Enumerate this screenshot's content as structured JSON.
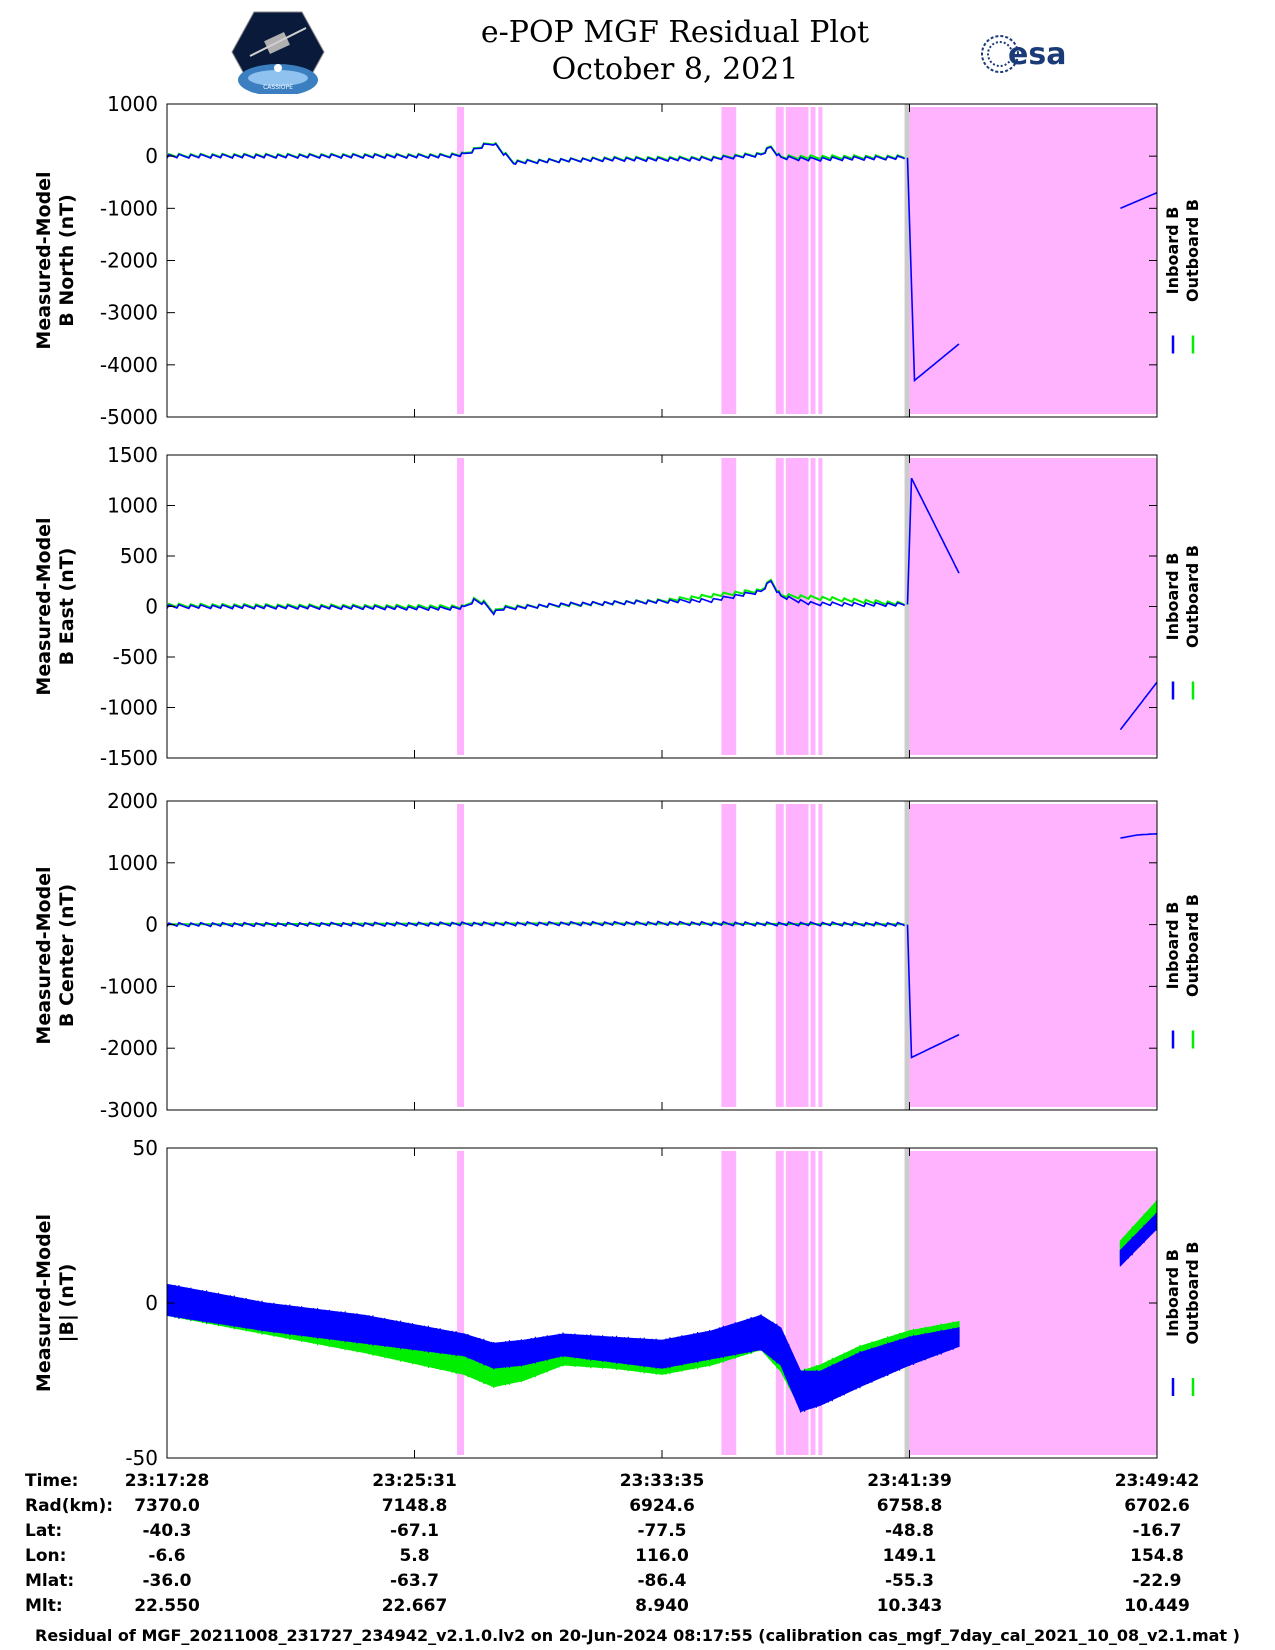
{
  "title": {
    "line1": "e-POP MGF Residual Plot",
    "line2": "October 8, 2021"
  },
  "logos": {
    "left": "cassiope-logo",
    "left_text": "CASSIOPE",
    "right": "esa-logo",
    "right_text": "esa"
  },
  "colors": {
    "inboard": "#0000ff",
    "outboard": "#00ee00",
    "shade": "#ffb3ff",
    "gap": "#cccccc"
  },
  "legend": {
    "inboard": "Inboard B",
    "outboard": "Outboard B"
  },
  "ephemeris": {
    "row_labels": [
      "Time:",
      "Rad(km):",
      "Lat:",
      "Lon:",
      "Mlat:",
      "Mlt:"
    ],
    "columns": [
      {
        "Time": "23:17:28",
        "Rad": "7370.0",
        "Lat": "-40.3",
        "Lon": "-6.6",
        "Mlat": "-36.0",
        "Mlt": "22.550"
      },
      {
        "Time": "23:25:31",
        "Rad": "7148.8",
        "Lat": "-67.1",
        "Lon": "5.8",
        "Mlat": "-63.7",
        "Mlt": "22.667"
      },
      {
        "Time": "23:33:35",
        "Rad": "6924.6",
        "Lat": "-77.5",
        "Lon": "116.0",
        "Mlat": "-86.4",
        "Mlt": "8.940"
      },
      {
        "Time": "23:41:39",
        "Rad": "6758.8",
        "Lat": "-48.8",
        "Lon": "149.1",
        "Mlat": "-55.3",
        "Mlt": "10.343"
      },
      {
        "Time": "23:49:42",
        "Rad": "6702.6",
        "Lat": "-16.7",
        "Lon": "154.8",
        "Mlat": "-22.9",
        "Mlt": "10.449"
      }
    ]
  },
  "footer": "Residual of MGF_20211008_231727_234942_v2.1.0.lv2 on 20-Jun-2024 08:17:55 (calibration cas_mgf_7day_cal_2021_10_08_v2.1.mat )",
  "chart_data": [
    {
      "type": "line",
      "ylabel": [
        "Measured-Model",
        "B North (nT)"
      ],
      "ylim": [
        -5000,
        1000
      ],
      "yticks": [
        1000,
        0,
        -1000,
        -2000,
        -3000,
        -4000,
        -5000
      ],
      "xlim": [
        0,
        1
      ],
      "xticks": [
        0,
        0.25,
        0.5,
        0.75,
        1
      ],
      "shaded_regions": [
        [
          0.293,
          0.3
        ],
        [
          0.56,
          0.575
        ],
        [
          0.615,
          0.623
        ],
        [
          0.625,
          0.648
        ],
        [
          0.65,
          0.655
        ],
        [
          0.658,
          0.662
        ],
        [
          0.75,
          1.0
        ]
      ],
      "gap_regions": [
        [
          0.745,
          0.75
        ]
      ],
      "series": [
        {
          "name": "Inboard B",
          "x": [
            0,
            0.1,
            0.2,
            0.28,
            0.3,
            0.32,
            0.33,
            0.34,
            0.35,
            0.4,
            0.45,
            0.5,
            0.55,
            0.6,
            0.61,
            0.62,
            0.65,
            0.7,
            0.745
          ],
          "values": [
            0,
            0,
            0,
            0,
            30,
            200,
            250,
            50,
            -120,
            -80,
            -60,
            -60,
            -50,
            30,
            170,
            -30,
            -60,
            -40,
            -30
          ]
        },
        {
          "name": "Inboard B",
          "x": [
            0.748,
            0.755,
            0.8
          ],
          "values": [
            -30,
            -4300,
            -3600
          ]
        },
        {
          "name": "Inboard B",
          "x": [
            0.963,
            1.0
          ],
          "values": [
            -1000,
            -700
          ]
        },
        {
          "name": "Outboard B",
          "x": [
            0,
            0.28,
            0.3,
            0.32,
            0.33,
            0.34,
            0.35,
            0.45,
            0.55,
            0.6,
            0.61,
            0.62,
            0.745
          ],
          "values": [
            10,
            10,
            40,
            210,
            260,
            60,
            -110,
            -50,
            -40,
            40,
            180,
            -20,
            -20
          ]
        }
      ]
    },
    {
      "type": "line",
      "ylabel": [
        "Measured-Model",
        "B East (nT)"
      ],
      "ylim": [
        -1500,
        1500
      ],
      "yticks": [
        1500,
        1000,
        500,
        0,
        -500,
        -1000,
        -1500
      ],
      "xlim": [
        0,
        1
      ],
      "xticks": [
        0,
        0.25,
        0.5,
        0.75,
        1
      ],
      "shaded_regions": [
        [
          0.293,
          0.3
        ],
        [
          0.56,
          0.575
        ],
        [
          0.615,
          0.623
        ],
        [
          0.625,
          0.648
        ],
        [
          0.65,
          0.655
        ],
        [
          0.658,
          0.662
        ],
        [
          0.75,
          1.0
        ]
      ],
      "gap_regions": [
        [
          0.745,
          0.75
        ]
      ],
      "series": [
        {
          "name": "Inboard B",
          "x": [
            0,
            0.1,
            0.2,
            0.28,
            0.3,
            0.31,
            0.32,
            0.33,
            0.34,
            0.4,
            0.5,
            0.55,
            0.6,
            0.61,
            0.62,
            0.65,
            0.7,
            0.745
          ],
          "values": [
            0,
            -5,
            -10,
            -20,
            -10,
            60,
            30,
            -60,
            -20,
            20,
            50,
            60,
            150,
            250,
            100,
            30,
            20,
            20
          ]
        },
        {
          "name": "Inboard B",
          "x": [
            0.748,
            0.752,
            0.8
          ],
          "values": [
            20,
            1270,
            330
          ]
        },
        {
          "name": "Inboard B",
          "x": [
            0.963,
            1.0
          ],
          "values": [
            -1220,
            -750
          ]
        },
        {
          "name": "Outboard B",
          "x": [
            0,
            0.3,
            0.31,
            0.32,
            0.33,
            0.34,
            0.5,
            0.6,
            0.61,
            0.62,
            0.745
          ],
          "values": [
            10,
            -5,
            70,
            40,
            -50,
            -10,
            55,
            160,
            260,
            110,
            25
          ]
        }
      ]
    },
    {
      "type": "line",
      "ylabel": [
        "Measured-Model",
        "B Center (nT)"
      ],
      "ylim": [
        -3000,
        2000
      ],
      "yticks": [
        2000,
        1000,
        0,
        -1000,
        -2000,
        -3000
      ],
      "xlim": [
        0,
        1
      ],
      "xticks": [
        0,
        0.25,
        0.5,
        0.75,
        1
      ],
      "shaded_regions": [
        [
          0.293,
          0.3
        ],
        [
          0.56,
          0.575
        ],
        [
          0.615,
          0.623
        ],
        [
          0.625,
          0.648
        ],
        [
          0.65,
          0.655
        ],
        [
          0.658,
          0.662
        ],
        [
          0.75,
          1.0
        ]
      ],
      "gap_regions": [
        [
          0.745,
          0.75
        ]
      ],
      "series": [
        {
          "name": "Inboard B",
          "x": [
            0,
            0.2,
            0.4,
            0.5,
            0.6,
            0.7,
            0.745
          ],
          "values": [
            0,
            5,
            15,
            20,
            10,
            10,
            0
          ]
        },
        {
          "name": "Inboard B",
          "x": [
            0.748,
            0.752,
            0.8
          ],
          "values": [
            0,
            -2150,
            -1780
          ]
        },
        {
          "name": "Inboard B",
          "x": [
            0.963,
            0.98,
            1.0
          ],
          "values": [
            1400,
            1450,
            1470
          ]
        },
        {
          "name": "Outboard B",
          "x": [
            0,
            0.4,
            0.745
          ],
          "values": [
            5,
            20,
            5
          ]
        }
      ]
    },
    {
      "type": "area",
      "ylabel": [
        "Measured-Model",
        "|B| (nT)"
      ],
      "ylim": [
        -50,
        50
      ],
      "yticks": [
        50,
        0,
        -50
      ],
      "xlim": [
        0,
        1
      ],
      "xticks": [
        0,
        0.25,
        0.5,
        0.75,
        1
      ],
      "shaded_regions": [
        [
          0.293,
          0.3
        ],
        [
          0.56,
          0.575
        ],
        [
          0.615,
          0.623
        ],
        [
          0.625,
          0.648
        ],
        [
          0.65,
          0.655
        ],
        [
          0.658,
          0.662
        ],
        [
          0.75,
          1.0
        ]
      ],
      "gap_regions": [
        [
          0.745,
          0.75
        ]
      ],
      "series": [
        {
          "name": "Outboard B",
          "x": [
            0,
            0.1,
            0.2,
            0.3,
            0.33,
            0.36,
            0.4,
            0.45,
            0.5,
            0.55,
            0.6,
            0.62,
            0.64,
            0.66,
            0.7,
            0.75,
            0.8
          ],
          "upper": [
            4,
            -2,
            -6,
            -11,
            -14,
            -14,
            -12,
            -13,
            -14,
            -11,
            -7,
            -10,
            -22,
            -20,
            -14,
            -9,
            -6
          ],
          "lower": [
            -4,
            -10,
            -16,
            -23,
            -27,
            -25,
            -20,
            -21,
            -23,
            -20,
            -15,
            -22,
            -34,
            -30,
            -24,
            -16,
            -12
          ]
        },
        {
          "name": "Inboard B",
          "x": [
            0,
            0.1,
            0.2,
            0.3,
            0.33,
            0.36,
            0.4,
            0.45,
            0.5,
            0.55,
            0.6,
            0.62,
            0.64,
            0.66,
            0.7,
            0.75,
            0.8
          ],
          "upper": [
            6,
            0,
            -4,
            -10,
            -13,
            -12,
            -10,
            -11,
            -12,
            -9,
            -4,
            -8,
            -22,
            -22,
            -16,
            -11,
            -8
          ],
          "lower": [
            -4,
            -9,
            -13,
            -17,
            -21,
            -20,
            -17,
            -19,
            -21,
            -18,
            -15,
            -20,
            -35,
            -33,
            -27,
            -20,
            -14
          ]
        },
        {
          "name": "Outboard B",
          "x": [
            0.963,
            1.0
          ],
          "upper": [
            20,
            33
          ],
          "lower": [
            14,
            27
          ]
        },
        {
          "name": "Inboard B",
          "x": [
            0.963,
            1.0
          ],
          "upper": [
            17,
            29
          ],
          "lower": [
            12,
            24
          ]
        }
      ]
    }
  ]
}
